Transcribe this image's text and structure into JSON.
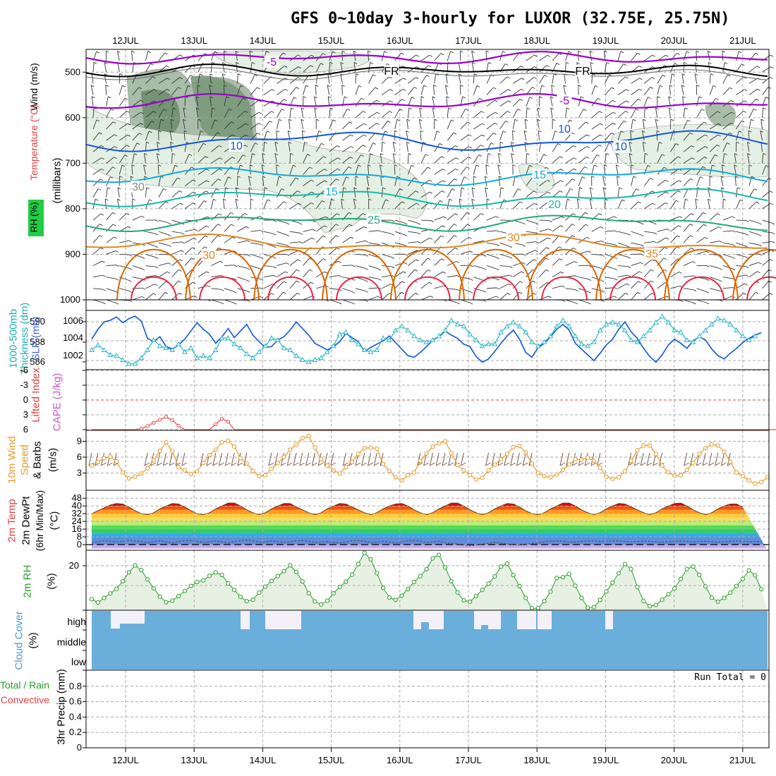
{
  "title": "GFS 0~10day 3-hourly for LUXOR (32.75E, 25.75N)",
  "days": [
    "12JUL",
    "13JUL",
    "14JUL",
    "15JUL",
    "16JUL",
    "17JUL",
    "18JUL",
    "19JUL",
    "20JUL",
    "21JUL"
  ],
  "colors": {
    "grid": "#aaaaaa",
    "purple": "#9900cc",
    "blue": "#1155dd",
    "lightblue": "#11aadd",
    "teal": "#11bbaa",
    "green": "#22aa77",
    "orange": "#dd8822",
    "darkorange": "#dd6600",
    "red": "#ee2244",
    "cloud": "#6aaedb",
    "rh_green": "#2a9d2a",
    "wind_orange": "#e89a2a",
    "cape_purple": "#cc55cc",
    "li_red": "#ee4444"
  },
  "chart_data": [
    {
      "type": "line",
      "panel": "upper-air",
      "ylabels": [
        "Wind (m/s)",
        "Temperature (°C)",
        "RH (%)",
        "(millibars)"
      ],
      "yticks": [
        500,
        600,
        700,
        800,
        900,
        1000
      ],
      "contour_labels": [
        "-5",
        "FR",
        "FR",
        "-5",
        "10",
        "10",
        "10",
        "15",
        "15",
        "20",
        "25",
        "30",
        "30",
        "35",
        "30"
      ]
    },
    {
      "type": "line",
      "panel": "slp-thickness",
      "ylabels": [
        "1000-500mb",
        "Thickness (dm)",
        "SLP (mb)"
      ],
      "thickness_ticks": [
        "590",
        "588",
        "586"
      ],
      "slp_ticks": [
        "1006",
        "1004",
        "1002"
      ],
      "series": [
        {
          "name": "SLP (mb)",
          "values": [
            1004.1,
            1005.3,
            1006.2,
            1006.4,
            1006.8,
            1006.1,
            1006.6,
            1006.9,
            1006.3,
            1004.2,
            1003.8,
            1004.4,
            1003.2,
            1002.9,
            1003.4,
            1004.1,
            1005.1,
            1006.1,
            1005.3,
            1004.7,
            1003.6,
            1004.4,
            1005.4,
            1004.3,
            1005.1,
            1005.9,
            1004.6,
            1003.8,
            1003.1,
            1003.2,
            1004.0,
            1004.4,
            1005.2,
            1006.2,
            1005.4,
            1004.6,
            1003.6,
            1003.2,
            1002.8,
            1003.2,
            1003.8,
            1004.8,
            1004.3,
            1003.8,
            1002.6,
            1003.1,
            1003.5,
            1003.9,
            1004.5,
            1003.7,
            1002.9,
            1002.1,
            1001.9,
            1002.5,
            1003.2,
            1004.0,
            1004.4,
            1005.1,
            1004.6,
            1004.2,
            1003.5,
            1003.2,
            1002.0,
            1001.3,
            1001.7,
            1002.6,
            1003.6,
            1004.5,
            1005.2,
            1004.1,
            1002.5,
            1001.9,
            1003.1,
            1003.6,
            1004.4,
            1005.3,
            1005.9,
            1005.2,
            1003.6,
            1002.9,
            1002.2,
            1001.5,
            1002.4,
            1003.4,
            1004.1,
            1005.3,
            1006.2,
            1005.0,
            1004.2,
            1003.0,
            1002.0,
            1001.3,
            1002.2,
            1003.4,
            1004.1,
            1003.6,
            1003.0,
            1003.9,
            1004.4,
            1004.0,
            1002.9,
            1002.1,
            1001.7,
            1002.4,
            1003.0,
            1003.7,
            1004.2,
            1004.6,
            1004.9
          ]
        },
        {
          "name": "1000-500mb Thickness (dm)",
          "values": [
            587.0,
            587.5,
            587.0,
            586.5,
            586.4,
            586.0,
            585.6,
            585.6,
            586.2,
            587.0,
            588.0,
            587.4,
            587.2,
            587.0,
            587.6,
            586.8,
            587.2,
            586.2,
            586.4,
            586.2,
            587.0,
            588.2,
            588.2,
            587.6,
            587.2,
            586.6,
            586.2,
            586.8,
            587.4,
            588.2,
            588.0,
            587.2,
            587.0,
            586.4,
            586.0,
            585.8,
            586.0,
            586.2,
            586.8,
            587.4,
            588.6,
            588.8,
            588.0,
            587.6,
            587.0,
            586.8,
            587.0,
            588.2,
            588.0,
            589.0,
            589.4,
            589.0,
            588.4,
            588.0,
            587.8,
            588.0,
            588.4,
            589.0,
            590.0,
            589.6,
            589.4,
            588.6,
            588.0,
            587.4,
            587.6,
            587.6,
            588.8,
            589.4,
            589.8,
            589.4,
            588.8,
            587.8,
            587.4,
            587.8,
            588.4,
            589.4,
            590.0,
            589.4,
            588.4,
            587.6,
            587.4,
            587.8,
            589.0,
            589.6,
            589.8,
            589.6,
            589.0,
            588.0,
            587.8,
            588.4,
            589.0,
            589.8,
            590.4,
            589.8,
            589.0,
            588.8,
            588.0,
            587.8,
            588.4,
            589.0,
            589.6,
            590.2,
            590.0,
            589.6,
            589.0,
            588.4,
            588.0,
            588.4
          ]
        }
      ]
    },
    {
      "type": "line",
      "panel": "cape-li",
      "ylabels": [
        "Lifted Index",
        "CAPE (J/kg)"
      ],
      "yticks": [
        "-6",
        "-3",
        "0",
        "3",
        "6"
      ],
      "series": [
        {
          "name": "Lifted Index",
          "values": [
            6,
            6,
            6,
            6,
            6,
            6,
            6,
            6,
            5.8,
            5.3,
            4.6,
            4.0,
            3.4,
            4.1,
            5.2,
            6,
            6,
            6,
            6,
            6,
            4.9,
            3.8,
            4.4,
            6,
            6,
            6,
            6,
            6,
            6,
            6,
            6,
            6,
            6,
            6,
            6,
            6,
            6,
            6,
            6,
            6,
            6,
            6,
            6,
            6,
            6,
            6,
            6,
            6,
            6,
            6,
            6,
            6,
            6,
            6,
            6,
            6,
            6,
            6,
            6,
            6,
            6,
            6,
            6,
            6,
            6,
            6,
            6,
            6,
            6,
            6,
            6,
            6,
            6,
            6,
            6,
            6,
            6,
            6,
            6,
            6,
            6,
            6,
            6,
            6,
            6,
            6,
            6,
            6,
            6,
            6,
            6,
            6,
            6,
            6,
            6,
            6,
            6,
            6,
            6,
            6,
            6,
            6,
            6,
            6,
            6,
            6,
            6,
            6,
            6,
            6,
            6,
            6,
            6,
            6,
            6
          ]
        }
      ]
    },
    {
      "type": "line",
      "panel": "wind",
      "ylabels": [
        "10m Wind",
        "Speed",
        "& Barbs",
        "(m/s)"
      ],
      "yticks": [
        "3",
        "6",
        "9"
      ],
      "series": [
        {
          "name": "10m Wind Speed",
          "values": [
            4.4,
            5.1,
            5.8,
            6.1,
            5.2,
            3.1,
            2.0,
            2.3,
            2.9,
            3.9,
            5.4,
            7.2,
            8.8,
            7.1,
            4.1,
            3.5,
            2.8,
            3.3,
            4.9,
            6.4,
            7.4,
            8.8,
            9.1,
            8.0,
            5.8,
            4.8,
            3.4,
            2.4,
            2.6,
            3.8,
            4.9,
            6.0,
            7.4,
            8.4,
            9.6,
            10.0,
            7.8,
            5.6,
            4.4,
            3.5,
            2.9,
            4.1,
            5.1,
            6.6,
            7.7,
            7.8,
            7.6,
            4.7,
            3.4,
            2.2,
            1.6,
            2.6,
            3.1,
            5.3,
            6.7,
            8.0,
            8.6,
            9.0,
            6.8,
            4.5,
            3.5,
            2.6,
            1.8,
            2.1,
            3.5,
            4.6,
            5.6,
            6.6,
            7.9,
            8.1,
            6.9,
            4.8,
            3.0,
            2.4,
            2.2,
            2.7,
            3.6,
            4.6,
            5.6,
            5.5,
            5.9,
            5.3,
            4.0,
            2.3,
            1.9,
            2.2,
            3.3,
            5.3,
            7.3,
            8.2,
            8.2,
            6.6,
            4.4,
            3.1,
            2.5,
            2.6,
            3.6,
            4.9,
            6.6,
            7.7,
            8.4,
            8.2,
            7.0,
            5.1,
            3.1,
            2.4,
            1.6,
            1.0,
            1.3,
            2.2
          ]
        }
      ]
    },
    {
      "type": "area",
      "panel": "temperature",
      "ylabels": [
        "2m Temp",
        "2m DewPt",
        "(6hr Min/Max)",
        "(°C)"
      ],
      "yticks": [
        "0",
        "8",
        "16",
        "24",
        "32",
        "40",
        "48"
      ],
      "series": [
        {
          "name": "2m Temp",
          "values": [
            32,
            35,
            38,
            41,
            42.5,
            42,
            39,
            35,
            32,
            31,
            33,
            37,
            40,
            42.5,
            42,
            39,
            35,
            32,
            31,
            33,
            37,
            40,
            43,
            43,
            40,
            36,
            33,
            31,
            33,
            37,
            40,
            42.5,
            42.5,
            39,
            36,
            33,
            31,
            33,
            37,
            40,
            42.5,
            42,
            39,
            36,
            33,
            31,
            33,
            37,
            40,
            42,
            42.5,
            40,
            36,
            33,
            31,
            33,
            37,
            40,
            43,
            43,
            40,
            36,
            33,
            31,
            33,
            37,
            40,
            42.5,
            42,
            39,
            35,
            32,
            31,
            33,
            37,
            40,
            43,
            43,
            40,
            36,
            33,
            31,
            33,
            37,
            40,
            42.5,
            42,
            39,
            36,
            33,
            31,
            33,
            37,
            40,
            42.5,
            43,
            40,
            36,
            33,
            31,
            33,
            37,
            40,
            42,
            42,
            39
          ]
        },
        {
          "name": "2m DewPt",
          "values": [
            1.8,
            3.0,
            4.0,
            3.6,
            2.8,
            3.2,
            4.2,
            3.8,
            2.9,
            1.9,
            3.3,
            3.9,
            2.6,
            1.8,
            3.0,
            4.0,
            4.3,
            3.4,
            2.3,
            2.8,
            3.6,
            2.8,
            1.8,
            3.2,
            4.4,
            4.7,
            3.8,
            2.7,
            2.6,
            3.6,
            3.1,
            2.1,
            2.9,
            4.0,
            4.2,
            3.5,
            2.2,
            2.4,
            3.2,
            2.5,
            1.6,
            2.9,
            4.1,
            4.3,
            3.4,
            2.1,
            2.6,
            3.4,
            2.6,
            1.7,
            3.0,
            4.2,
            4.5,
            3.6,
            2.4,
            2.7,
            3.4,
            2.2,
            1.2,
            0.6,
            -0.6,
            -1.2,
            -0.6,
            0.5,
            1.5,
            2.4,
            1.6,
            0.6,
            -0.3,
            -0.5,
            0.4,
            1.2,
            1.8,
            2.8,
            3.5,
            3.9,
            3.4,
            2.7,
            2.6,
            3.3,
            3.9,
            3.6,
            3.2,
            3.5,
            3.8,
            3.9,
            3.3,
            2.8,
            3.2,
            3.6,
            3.3,
            2.9,
            2.6,
            3.0,
            3.6,
            3.8,
            3.4,
            2.8,
            3.1,
            3.4,
            3.0,
            2.6,
            3.0,
            3.6,
            3.9,
            3.4,
            2.9,
            3.0,
            3.4
          ]
        }
      ]
    },
    {
      "type": "line",
      "panel": "rh",
      "ylabels": [
        "2m RH",
        "(%)"
      ],
      "yticks": [
        "20"
      ],
      "series": [
        {
          "name": "2m RH",
          "values": [
            6.3,
            5.0,
            6.8,
            8.6,
            10.4,
            13.5,
            17.0,
            19.8,
            17.9,
            14.2,
            10.6,
            7.3,
            5.1,
            5.7,
            7.5,
            9.6,
            11.6,
            13.2,
            13.8,
            15.6,
            17.0,
            16.0,
            12.6,
            10.0,
            7.2,
            5.5,
            6.1,
            8.9,
            11.3,
            13.6,
            15.5,
            17.5,
            19.8,
            17.2,
            13.4,
            8.7,
            5.4,
            4.2,
            5.7,
            8.7,
            11.2,
            13.3,
            16.1,
            20.4,
            24.8,
            22.2,
            16.7,
            10.8,
            7.0,
            6.0,
            7.7,
            10.3,
            13.2,
            15.5,
            18.3,
            22.6,
            24.0,
            19.0,
            13.5,
            9.0,
            5.8,
            5.3,
            7.5,
            10.0,
            12.5,
            15.4,
            19.3,
            20.5,
            15.9,
            11.5,
            6.8,
            2.7,
            2.7,
            5.5,
            9.3,
            14.8,
            15.1,
            16.4,
            11.7,
            6.8,
            2.9,
            3.1,
            6.0,
            9.4,
            12.9,
            16.7,
            20.3,
            18.3,
            11.2,
            5.6,
            3.5,
            4.0,
            6.1,
            8.3,
            10.6,
            14.4,
            18.4,
            19.3,
            16.0,
            11.4,
            6.9,
            5.3,
            6.8,
            8.9,
            11.6,
            14.4,
            17.8,
            15.8,
            10.3
          ]
        }
      ]
    },
    {
      "type": "bar",
      "panel": "cloud",
      "ylabels": [
        "Cloud Cover",
        "(%)"
      ],
      "categories": [
        "high",
        "middle",
        "low"
      ]
    },
    {
      "type": "bar",
      "panel": "precip",
      "ylabels": [
        "Total / Rain",
        "Convective",
        "3hr Precip (mm)"
      ],
      "yticks": [
        "0",
        "0.2",
        "0.4",
        "0.6",
        "0.8"
      ],
      "run_total": "Run Total = 0",
      "values": []
    }
  ]
}
